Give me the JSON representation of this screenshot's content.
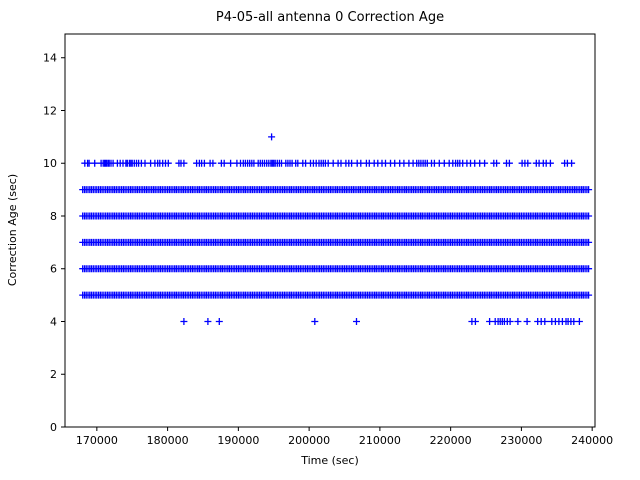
{
  "chart_data": {
    "type": "scatter",
    "title": "P4-05-all antenna 0 Correction Age",
    "xlabel": "Time (sec)",
    "ylabel": "Correction Age (sec)",
    "marker": "+",
    "marker_color": "#0000ff",
    "grid": false,
    "legend": "none",
    "xlim": [
      165500,
      240400
    ],
    "ylim": [
      0,
      14.9
    ],
    "xticks": [
      170000,
      180000,
      190000,
      200000,
      210000,
      220000,
      230000,
      240000
    ],
    "yticks": [
      0,
      2,
      4,
      6,
      8,
      10,
      12,
      14
    ],
    "dense_bands": [
      {
        "y": 5,
        "x_start": 168000,
        "x_end": 239700,
        "note": "continuous dense band of + markers"
      },
      {
        "y": 6,
        "x_start": 168000,
        "x_end": 239700,
        "note": "continuous dense band of + markers"
      },
      {
        "y": 7,
        "x_start": 168000,
        "x_end": 239700,
        "note": "continuous dense band of + markers"
      },
      {
        "y": 8,
        "x_start": 168000,
        "x_end": 239700,
        "note": "continuous dense band of + markers"
      },
      {
        "y": 9,
        "x_start": 168000,
        "x_end": 239700,
        "note": "continuous dense band of + markers"
      }
    ],
    "sparse_series": [
      {
        "y": 11,
        "x": [
          194700
        ]
      },
      {
        "y": 10,
        "x": [
          168300,
          168700,
          168900,
          169700,
          170600,
          170900,
          171100,
          171250,
          171400,
          171600,
          171750,
          172000,
          172300,
          172900,
          173300,
          173700,
          174100,
          174300,
          174600,
          174800,
          175000,
          175300,
          175600,
          175900,
          176300,
          176800,
          177600,
          178200,
          178600,
          178900,
          179300,
          179700,
          180100,
          181600,
          181900,
          182300,
          184100,
          184500,
          184800,
          185200,
          186000,
          186400,
          187600,
          188000,
          188900,
          189800,
          190300,
          190700,
          191000,
          191300,
          191600,
          191900,
          192200,
          192800,
          193100,
          193400,
          193700,
          194000,
          194300,
          194600,
          194800,
          195000,
          195200,
          195500,
          195800,
          196100,
          196700,
          197000,
          197300,
          197600,
          198100,
          198400,
          199100,
          199500,
          200200,
          200600,
          201000,
          201400,
          201700,
          202000,
          202300,
          202700,
          203400,
          204100,
          204500,
          205200,
          205600,
          206000,
          206800,
          207300,
          208100,
          208500,
          209200,
          209700,
          210300,
          210800,
          211500,
          212100,
          212800,
          213400,
          214100,
          214700,
          215200,
          215500,
          215800,
          216100,
          216400,
          216700,
          217300,
          217700,
          218400,
          219100,
          219800,
          220300,
          220700,
          221000,
          221300,
          221700,
          222300,
          222800,
          223400,
          224100,
          224800,
          226100,
          226500,
          227900,
          228300,
          230100,
          230500,
          230900,
          232100,
          232500,
          233100,
          233500,
          234100,
          236100,
          236500,
          237100
        ]
      },
      {
        "y": 4,
        "x": [
          182300,
          185700,
          187300,
          200800,
          206700,
          223000,
          223500,
          225500,
          226300,
          226700,
          227000,
          227300,
          227600,
          228000,
          228400,
          229500,
          230800,
          232300,
          232800,
          233300,
          234300,
          234800,
          235300,
          235800,
          236300,
          236600,
          237000,
          237400,
          238200
        ]
      }
    ]
  }
}
